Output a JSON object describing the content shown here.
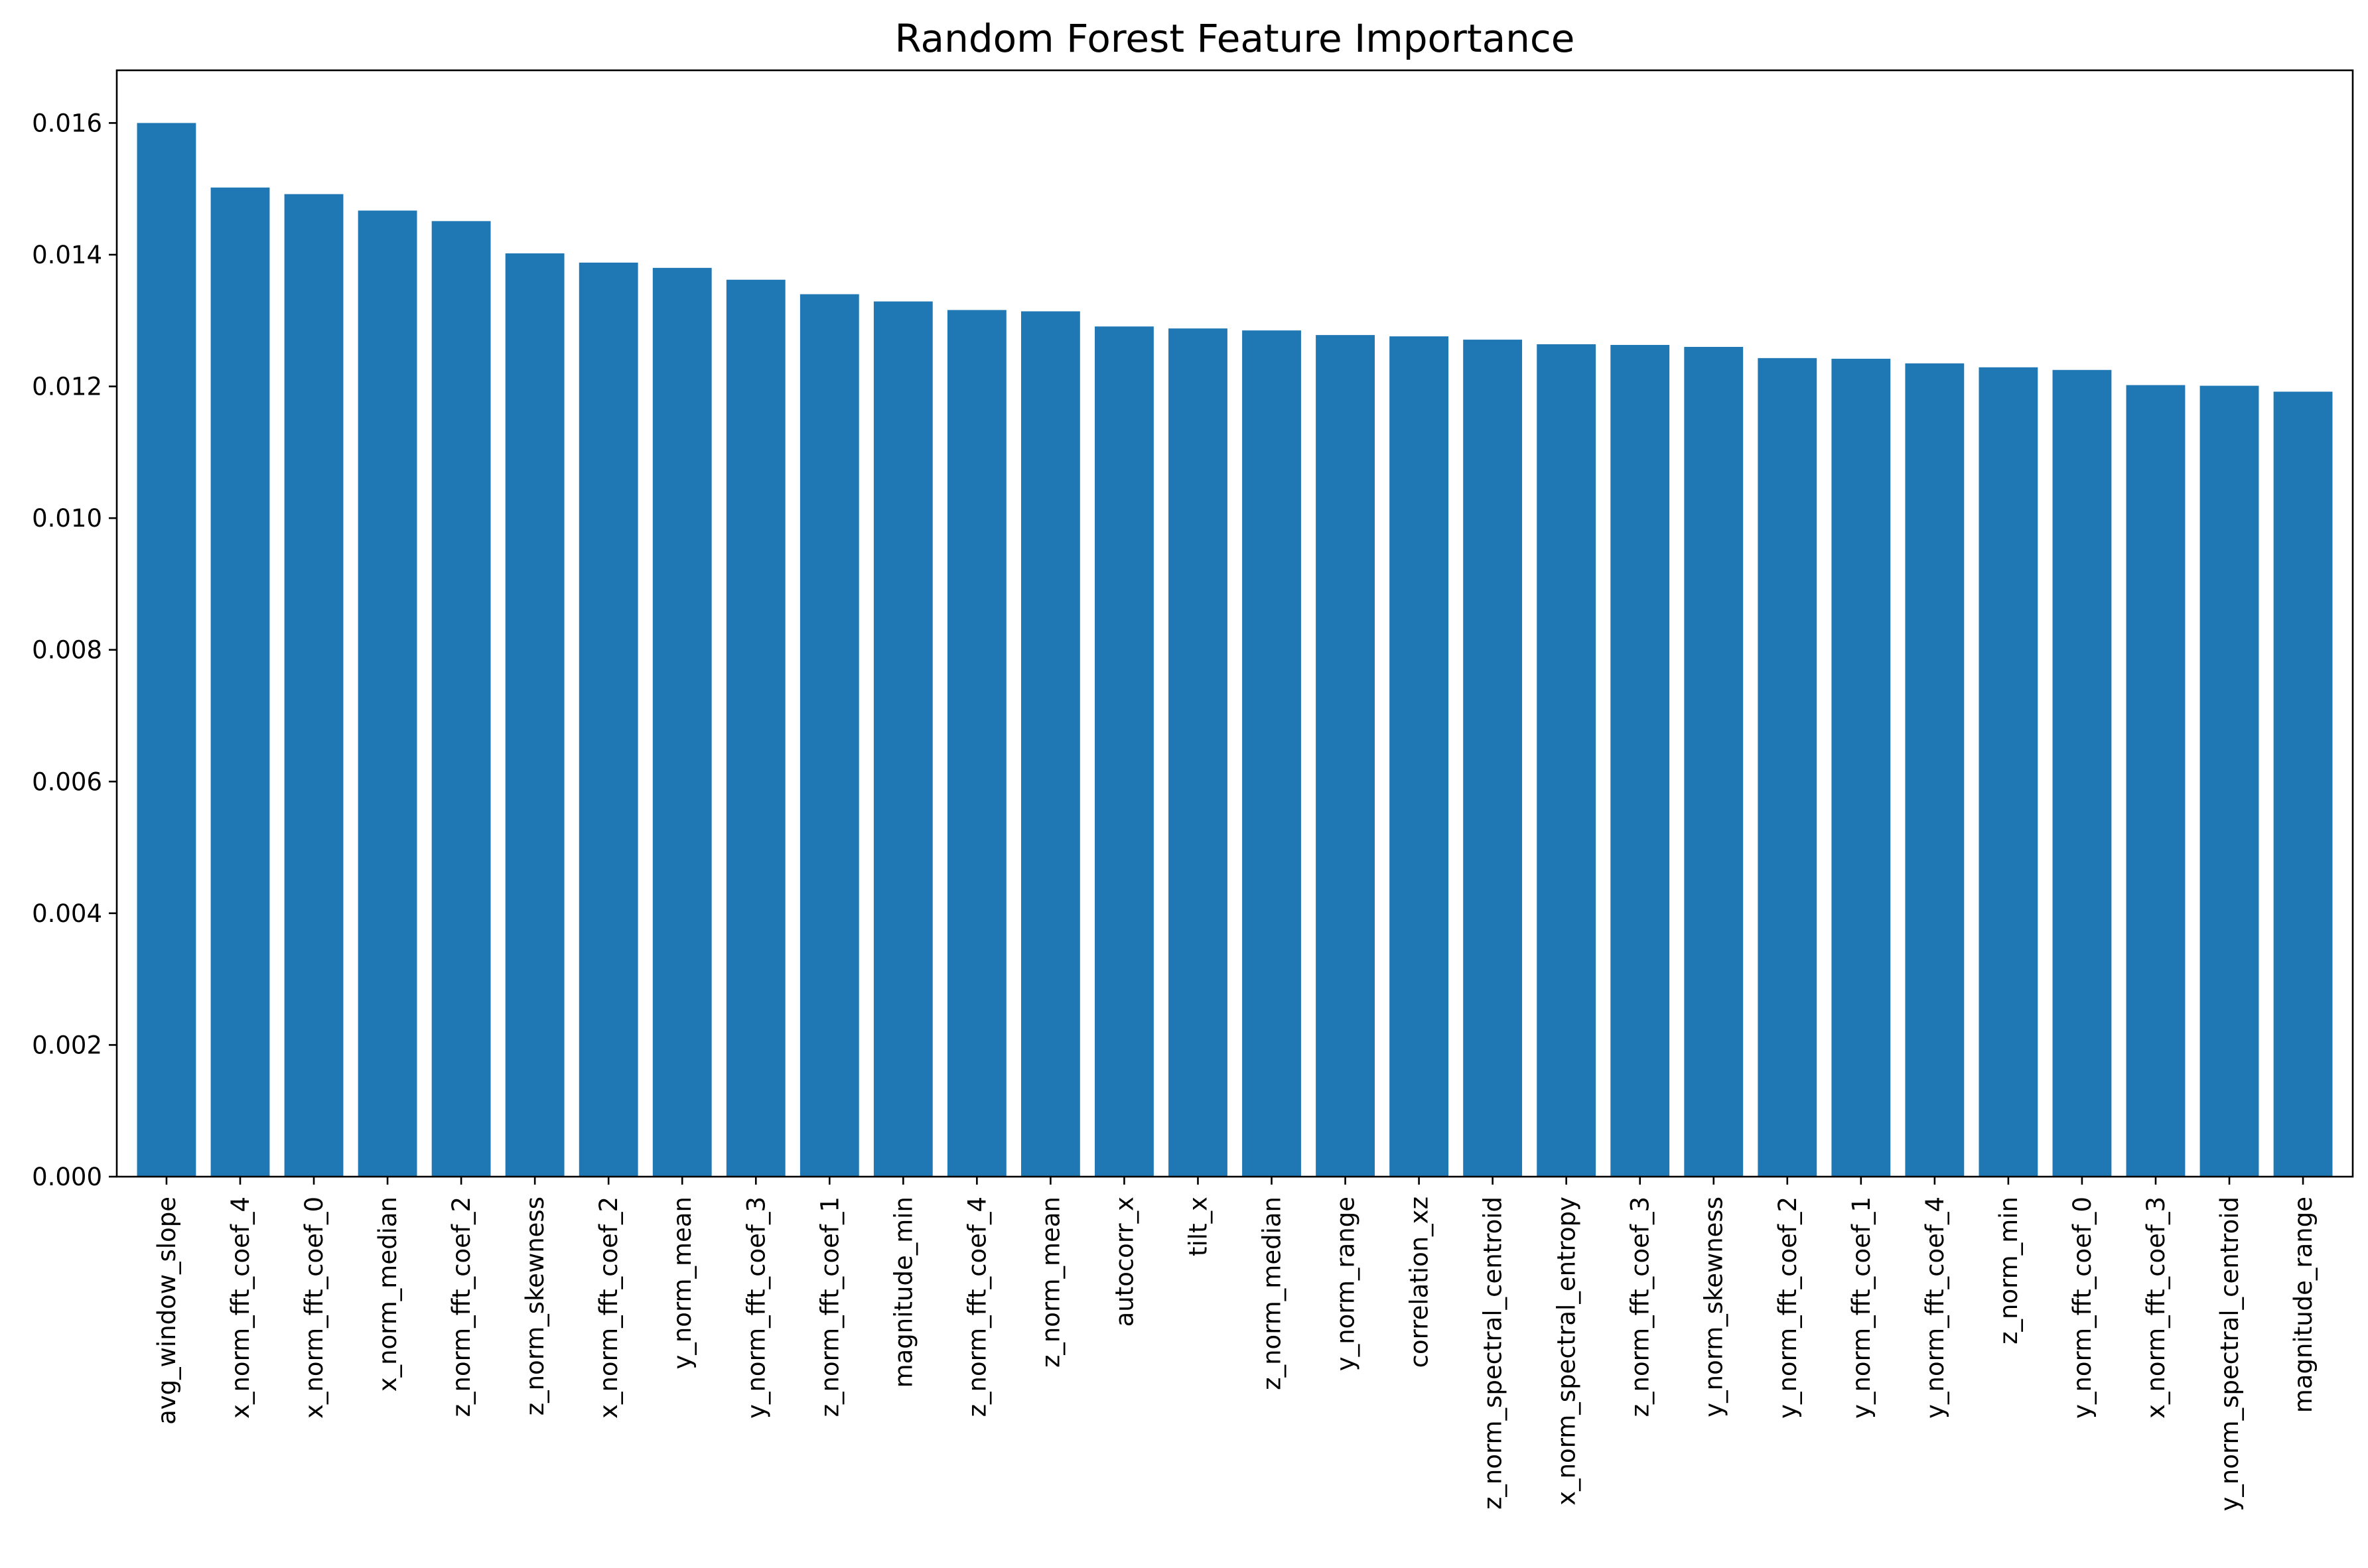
{
  "chart_data": {
    "type": "bar",
    "title": "Random Forest Feature Importance",
    "xlabel": "",
    "ylabel": "",
    "ylim": [
      0,
      0.0168
    ],
    "yticks": [
      "0.000",
      "0.002",
      "0.004",
      "0.006",
      "0.008",
      "0.010",
      "0.012",
      "0.014",
      "0.016"
    ],
    "grid": false,
    "color": "#1f77b4",
    "categories": [
      "avg_window_slope",
      "x_norm_fft_coef_4",
      "x_norm_fft_coef_0",
      "x_norm_median",
      "z_norm_fft_coef_2",
      "z_norm_skewness",
      "x_norm_fft_coef_2",
      "y_norm_mean",
      "y_norm_fft_coef_3",
      "z_norm_fft_coef_1",
      "magnitude_min",
      "z_norm_fft_coef_4",
      "z_norm_mean",
      "autocorr_x",
      "tilt_x",
      "z_norm_median",
      "y_norm_range",
      "correlation_xz",
      "z_norm_spectral_centroid",
      "x_norm_spectral_entropy",
      "z_norm_fft_coef_3",
      "y_norm_skewness",
      "y_norm_fft_coef_2",
      "y_norm_fft_coef_1",
      "y_norm_fft_coef_4",
      "z_norm_min",
      "y_norm_fft_coef_0",
      "x_norm_fft_coef_3",
      "y_norm_spectral_centroid",
      "magnitude_range"
    ],
    "values": [
      0.016,
      0.01502,
      0.01492,
      0.01467,
      0.01451,
      0.01402,
      0.01388,
      0.0138,
      0.01362,
      0.0134,
      0.01329,
      0.01316,
      0.01314,
      0.01291,
      0.01288,
      0.01285,
      0.01278,
      0.01276,
      0.01271,
      0.01264,
      0.01263,
      0.0126,
      0.01243,
      0.01242,
      0.01235,
      0.01229,
      0.01225,
      0.01202,
      0.01201,
      0.01192
    ]
  }
}
